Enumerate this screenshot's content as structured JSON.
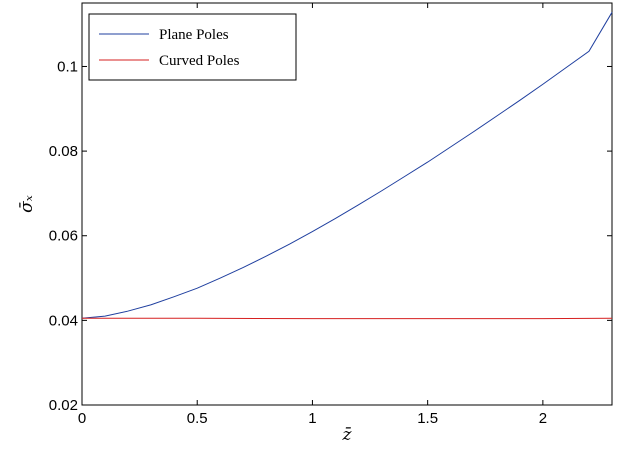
{
  "chart_data": {
    "type": "line",
    "xlabel": "z̄",
    "ylabel": "σ̄ₓ",
    "xlim": [
      0,
      2.3
    ],
    "ylim": [
      0.02,
      0.115
    ],
    "x_ticks": [
      0,
      0.5,
      1,
      1.5,
      2
    ],
    "x_tick_labels": [
      "0",
      "0.5",
      "1",
      "1.5",
      "2"
    ],
    "y_ticks": [
      0.02,
      0.04,
      0.06,
      0.08,
      0.1
    ],
    "y_tick_labels": [
      "0.02",
      "0.04",
      "0.06",
      "0.08",
      "0.1"
    ],
    "grid": false,
    "legend_position": "top-left",
    "series": [
      {
        "name": "Plane Poles",
        "color": "#1f3f9f",
        "x": [
          0,
          0.1,
          0.2,
          0.3,
          0.4,
          0.5,
          0.6,
          0.7,
          0.8,
          0.9,
          1.0,
          1.1,
          1.2,
          1.3,
          1.4,
          1.5,
          1.6,
          1.7,
          1.8,
          1.9,
          2.0,
          2.1,
          2.2,
          2.3
        ],
        "y": [
          0.0405,
          0.041,
          0.0422,
          0.0437,
          0.0456,
          0.0476,
          0.05,
          0.0525,
          0.0552,
          0.058,
          0.061,
          0.0641,
          0.0673,
          0.0706,
          0.074,
          0.0774,
          0.081,
          0.0846,
          0.0883,
          0.092,
          0.0958,
          0.0997,
          0.1036,
          0.1128
        ]
      },
      {
        "name": "Curved Poles",
        "color": "#d62020",
        "x": [
          0,
          0.5,
          1.0,
          1.5,
          2.0,
          2.3
        ],
        "y": [
          0.0405,
          0.0405,
          0.0404,
          0.0404,
          0.0404,
          0.0405
        ]
      }
    ]
  }
}
